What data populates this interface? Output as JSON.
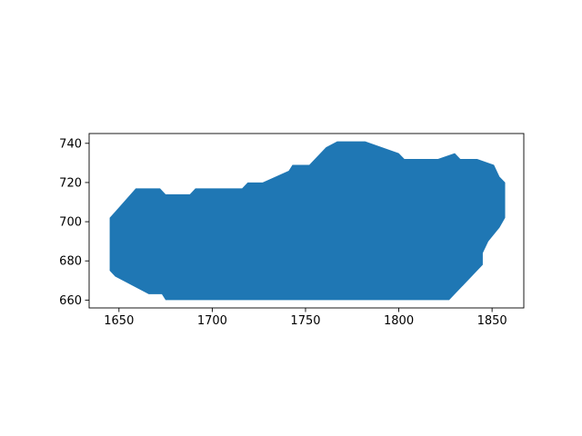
{
  "chart_data": {
    "type": "area",
    "title": "",
    "xlabel": "",
    "ylabel": "",
    "xlim": [
      1634,
      1867
    ],
    "ylim": [
      656,
      745
    ],
    "grid": false,
    "legend": "none",
    "colors": {
      "fill": "#1f77b4",
      "frame": "#000000"
    },
    "x_ticks": [
      1650,
      1700,
      1750,
      1800,
      1850
    ],
    "x_tick_labels": [
      "1650",
      "1700",
      "1750",
      "1800",
      "1850"
    ],
    "y_ticks": [
      660,
      680,
      700,
      720,
      740
    ],
    "y_tick_labels": [
      "660",
      "680",
      "700",
      "720",
      "740"
    ],
    "polygon": [
      {
        "x": 1645,
        "y": 702
      },
      {
        "x": 1659,
        "y": 717
      },
      {
        "x": 1672,
        "y": 717
      },
      {
        "x": 1675,
        "y": 714
      },
      {
        "x": 1688,
        "y": 714
      },
      {
        "x": 1691,
        "y": 717
      },
      {
        "x": 1716,
        "y": 717
      },
      {
        "x": 1719,
        "y": 720
      },
      {
        "x": 1727,
        "y": 720
      },
      {
        "x": 1741,
        "y": 726
      },
      {
        "x": 1743,
        "y": 729
      },
      {
        "x": 1752,
        "y": 729
      },
      {
        "x": 1761,
        "y": 738
      },
      {
        "x": 1767,
        "y": 741
      },
      {
        "x": 1782,
        "y": 741
      },
      {
        "x": 1800,
        "y": 735
      },
      {
        "x": 1803,
        "y": 732
      },
      {
        "x": 1821,
        "y": 732
      },
      {
        "x": 1830,
        "y": 735
      },
      {
        "x": 1833,
        "y": 732
      },
      {
        "x": 1842,
        "y": 732
      },
      {
        "x": 1851,
        "y": 729
      },
      {
        "x": 1854,
        "y": 723
      },
      {
        "x": 1857,
        "y": 720
      },
      {
        "x": 1857,
        "y": 702
      },
      {
        "x": 1854,
        "y": 697
      },
      {
        "x": 1848,
        "y": 690
      },
      {
        "x": 1845,
        "y": 684
      },
      {
        "x": 1845,
        "y": 678
      },
      {
        "x": 1827,
        "y": 660
      },
      {
        "x": 1675,
        "y": 660
      },
      {
        "x": 1673,
        "y": 663
      },
      {
        "x": 1666,
        "y": 663
      },
      {
        "x": 1648,
        "y": 672
      },
      {
        "x": 1645,
        "y": 675
      }
    ]
  }
}
